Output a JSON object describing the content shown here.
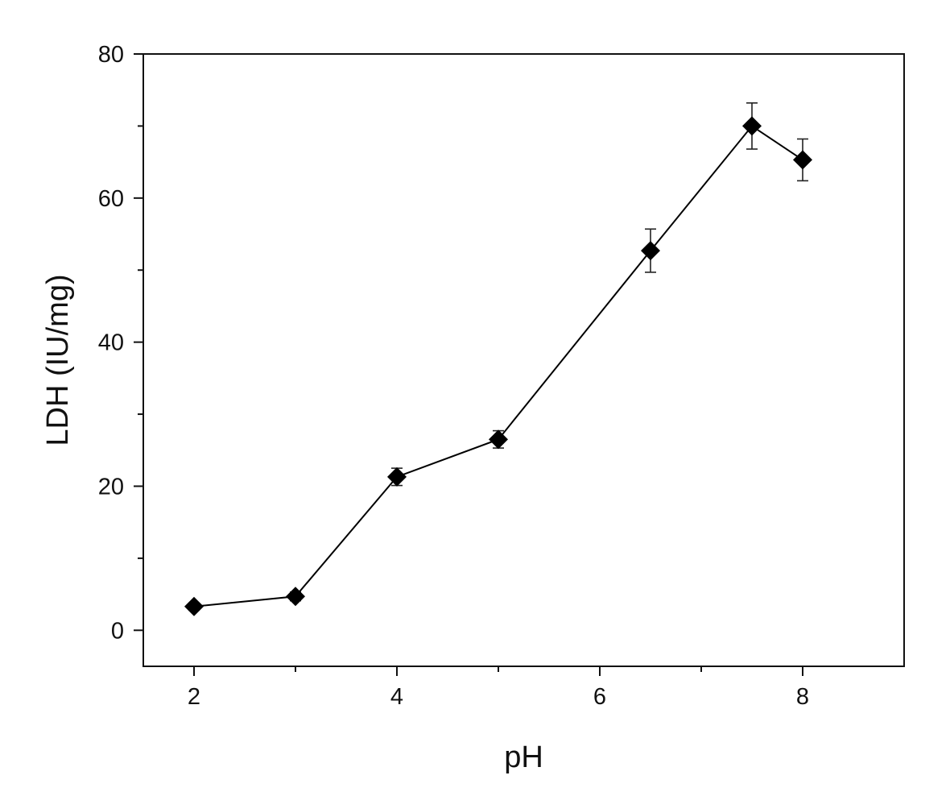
{
  "chart_data": {
    "type": "line",
    "title": "",
    "xlabel": "pH",
    "ylabel": "LDH (IU/mg)",
    "xlim": [
      1.5,
      9.0
    ],
    "ylim": [
      -5,
      80
    ],
    "x_ticks": [
      2,
      4,
      6,
      8
    ],
    "y_ticks": [
      0,
      20,
      40,
      60,
      80
    ],
    "x_minor_ticks": [
      3,
      5,
      7
    ],
    "y_minor_ticks": [
      10,
      30,
      50,
      70
    ],
    "grid": false,
    "legend": "none",
    "marker": "diamond",
    "line_color": "#000000",
    "marker_color": "#000000",
    "series": [
      {
        "x": [
          2,
          3,
          4,
          5,
          6.5,
          7.5,
          8
        ],
        "y": [
          3.3,
          4.7,
          21.3,
          26.5,
          52.7,
          70.0,
          65.3
        ],
        "y_error": [
          0.5,
          0.6,
          1.2,
          1.2,
          3.0,
          3.2,
          2.9
        ]
      }
    ]
  }
}
